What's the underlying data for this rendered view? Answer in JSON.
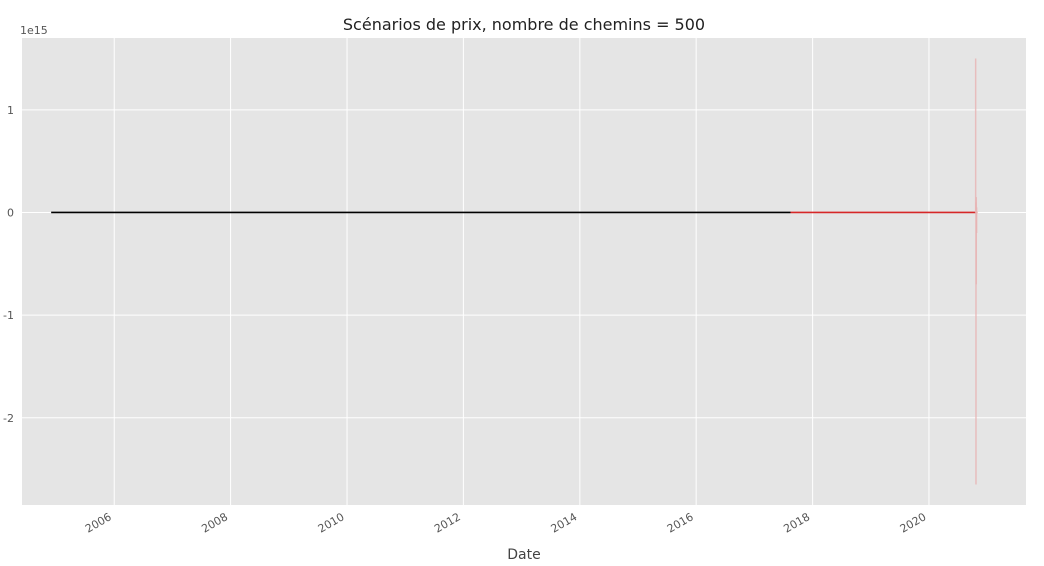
{
  "chart_data": {
    "type": "line",
    "title": "Scénarios de prix, nombre de chemins = 500",
    "xlabel": "Date",
    "ylabel": "",
    "y_offset_label": "1e15",
    "y_scale": 1000000000000000.0,
    "xlim": [
      "2004-06-01",
      "2021-09-01"
    ],
    "ylim": [
      -2.85,
      1.7
    ],
    "x_ticks": [
      "2006-01-01",
      "2008-01-01",
      "2010-01-01",
      "2012-01-01",
      "2014-01-01",
      "2016-01-01",
      "2018-01-01",
      "2020-01-01"
    ],
    "x_tick_labels": [
      "2006",
      "2008",
      "2010",
      "2012",
      "2014",
      "2016",
      "2018",
      "2020"
    ],
    "y_ticks": [
      -2,
      -1,
      0,
      1
    ],
    "y_tick_labels": [
      "-2",
      "-1",
      "0",
      "1"
    ],
    "grid": true,
    "background": "#e5e5e5",
    "grid_color": "#ffffff",
    "series": [
      {
        "color": "#000000",
        "x": [
          "2004-12-01",
          "2017-08-15"
        ],
        "y": [
          0,
          0
        ]
      },
      {
        "color": "#d62728",
        "x": [
          "2017-08-15",
          "2020-10-31"
        ],
        "y": [
          0,
          0
        ]
      },
      {
        "color": "#e8b4b4",
        "x": [
          "2020-10-20",
          "2020-10-20",
          "2020-10-22",
          "2020-10-22",
          "2020-10-24",
          "2020-10-24",
          "2020-10-26",
          "2020-10-26"
        ],
        "y": [
          0,
          1.5,
          0.1,
          -2.65,
          0.15,
          -0.7,
          0.05,
          -0.2
        ]
      }
    ]
  }
}
